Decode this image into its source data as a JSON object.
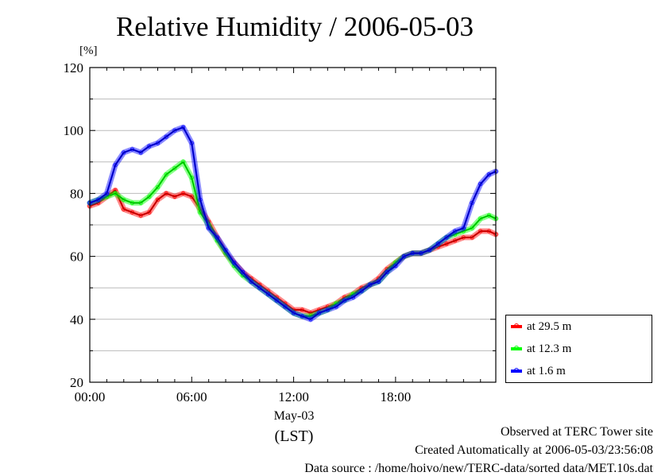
{
  "title": "Relative Humidity / 2006-05-03",
  "unit": "[%]",
  "x_day_label": "May-03",
  "x_axis_label": "(LST)",
  "footer": {
    "line1": "Observed at TERC Tower site",
    "line2": "Created Automatically at 2006-05-03/23:56:08",
    "line3": "Data source : /home/hoivo/new/TERC-data/sorted data/MET.10s.dat"
  },
  "colors": {
    "series1": "#ff0000",
    "series2": "#00ff00",
    "series3": "#0000ff",
    "grid": "#bbbbbb"
  },
  "chart_data": {
    "type": "line",
    "xlabel": "(LST)",
    "ylabel": "[%]",
    "xlim": [
      0,
      23.9
    ],
    "ylim": [
      20,
      120
    ],
    "x_ticks": [
      0,
      6,
      12,
      18
    ],
    "x_tick_labels": [
      "00:00",
      "06:00",
      "12:00",
      "18:00"
    ],
    "y_ticks": [
      20,
      40,
      60,
      80,
      100,
      120
    ],
    "grid": true,
    "legend_position": "right-bottom-outside",
    "x": [
      0,
      0.5,
      1,
      1.5,
      2,
      2.5,
      3,
      3.5,
      4,
      4.5,
      5,
      5.5,
      6,
      6.5,
      7,
      7.5,
      8,
      8.5,
      9,
      9.5,
      10,
      10.5,
      11,
      11.5,
      12,
      12.5,
      13,
      13.5,
      14,
      14.5,
      15,
      15.5,
      16,
      16.5,
      17,
      17.5,
      18,
      18.5,
      19,
      19.5,
      20,
      20.5,
      21,
      21.5,
      22,
      22.5,
      23,
      23.5,
      23.9
    ],
    "series": [
      {
        "name": "at 29.5 m",
        "color": "#ff0000",
        "values": [
          76,
          77,
          79,
          81,
          75,
          74,
          73,
          74,
          78,
          80,
          79,
          80,
          79,
          75,
          71,
          66,
          61,
          58,
          55,
          53,
          51,
          49,
          47,
          45,
          43,
          43,
          42,
          43,
          44,
          45,
          47,
          48,
          50,
          51,
          53,
          56,
          58,
          60,
          61,
          61,
          62,
          63,
          64,
          65,
          66,
          66,
          68,
          68,
          67
        ]
      },
      {
        "name": "at 12.3 m",
        "color": "#00ff00",
        "values": [
          77,
          78,
          79,
          80,
          78,
          77,
          77,
          79,
          82,
          86,
          88,
          90,
          85,
          74,
          70,
          65,
          61,
          57,
          54,
          52,
          50,
          48,
          46,
          44,
          42,
          41,
          41,
          42,
          43,
          45,
          46,
          48,
          49,
          51,
          52,
          55,
          58,
          60,
          61,
          61,
          62,
          64,
          66,
          67,
          68,
          69,
          72,
          73,
          72
        ]
      },
      {
        "name": "at 1.6 m",
        "color": "#0000ff",
        "values": [
          77,
          78,
          80,
          89,
          93,
          94,
          93,
          95,
          96,
          98,
          100,
          101,
          96,
          78,
          69,
          66,
          62,
          58,
          55,
          52,
          50,
          48,
          46,
          44,
          42,
          41,
          40,
          42,
          43,
          44,
          46,
          47,
          49,
          51,
          52,
          55,
          57,
          60,
          61,
          61,
          62,
          64,
          66,
          68,
          69,
          77,
          83,
          86,
          87
        ]
      }
    ]
  }
}
